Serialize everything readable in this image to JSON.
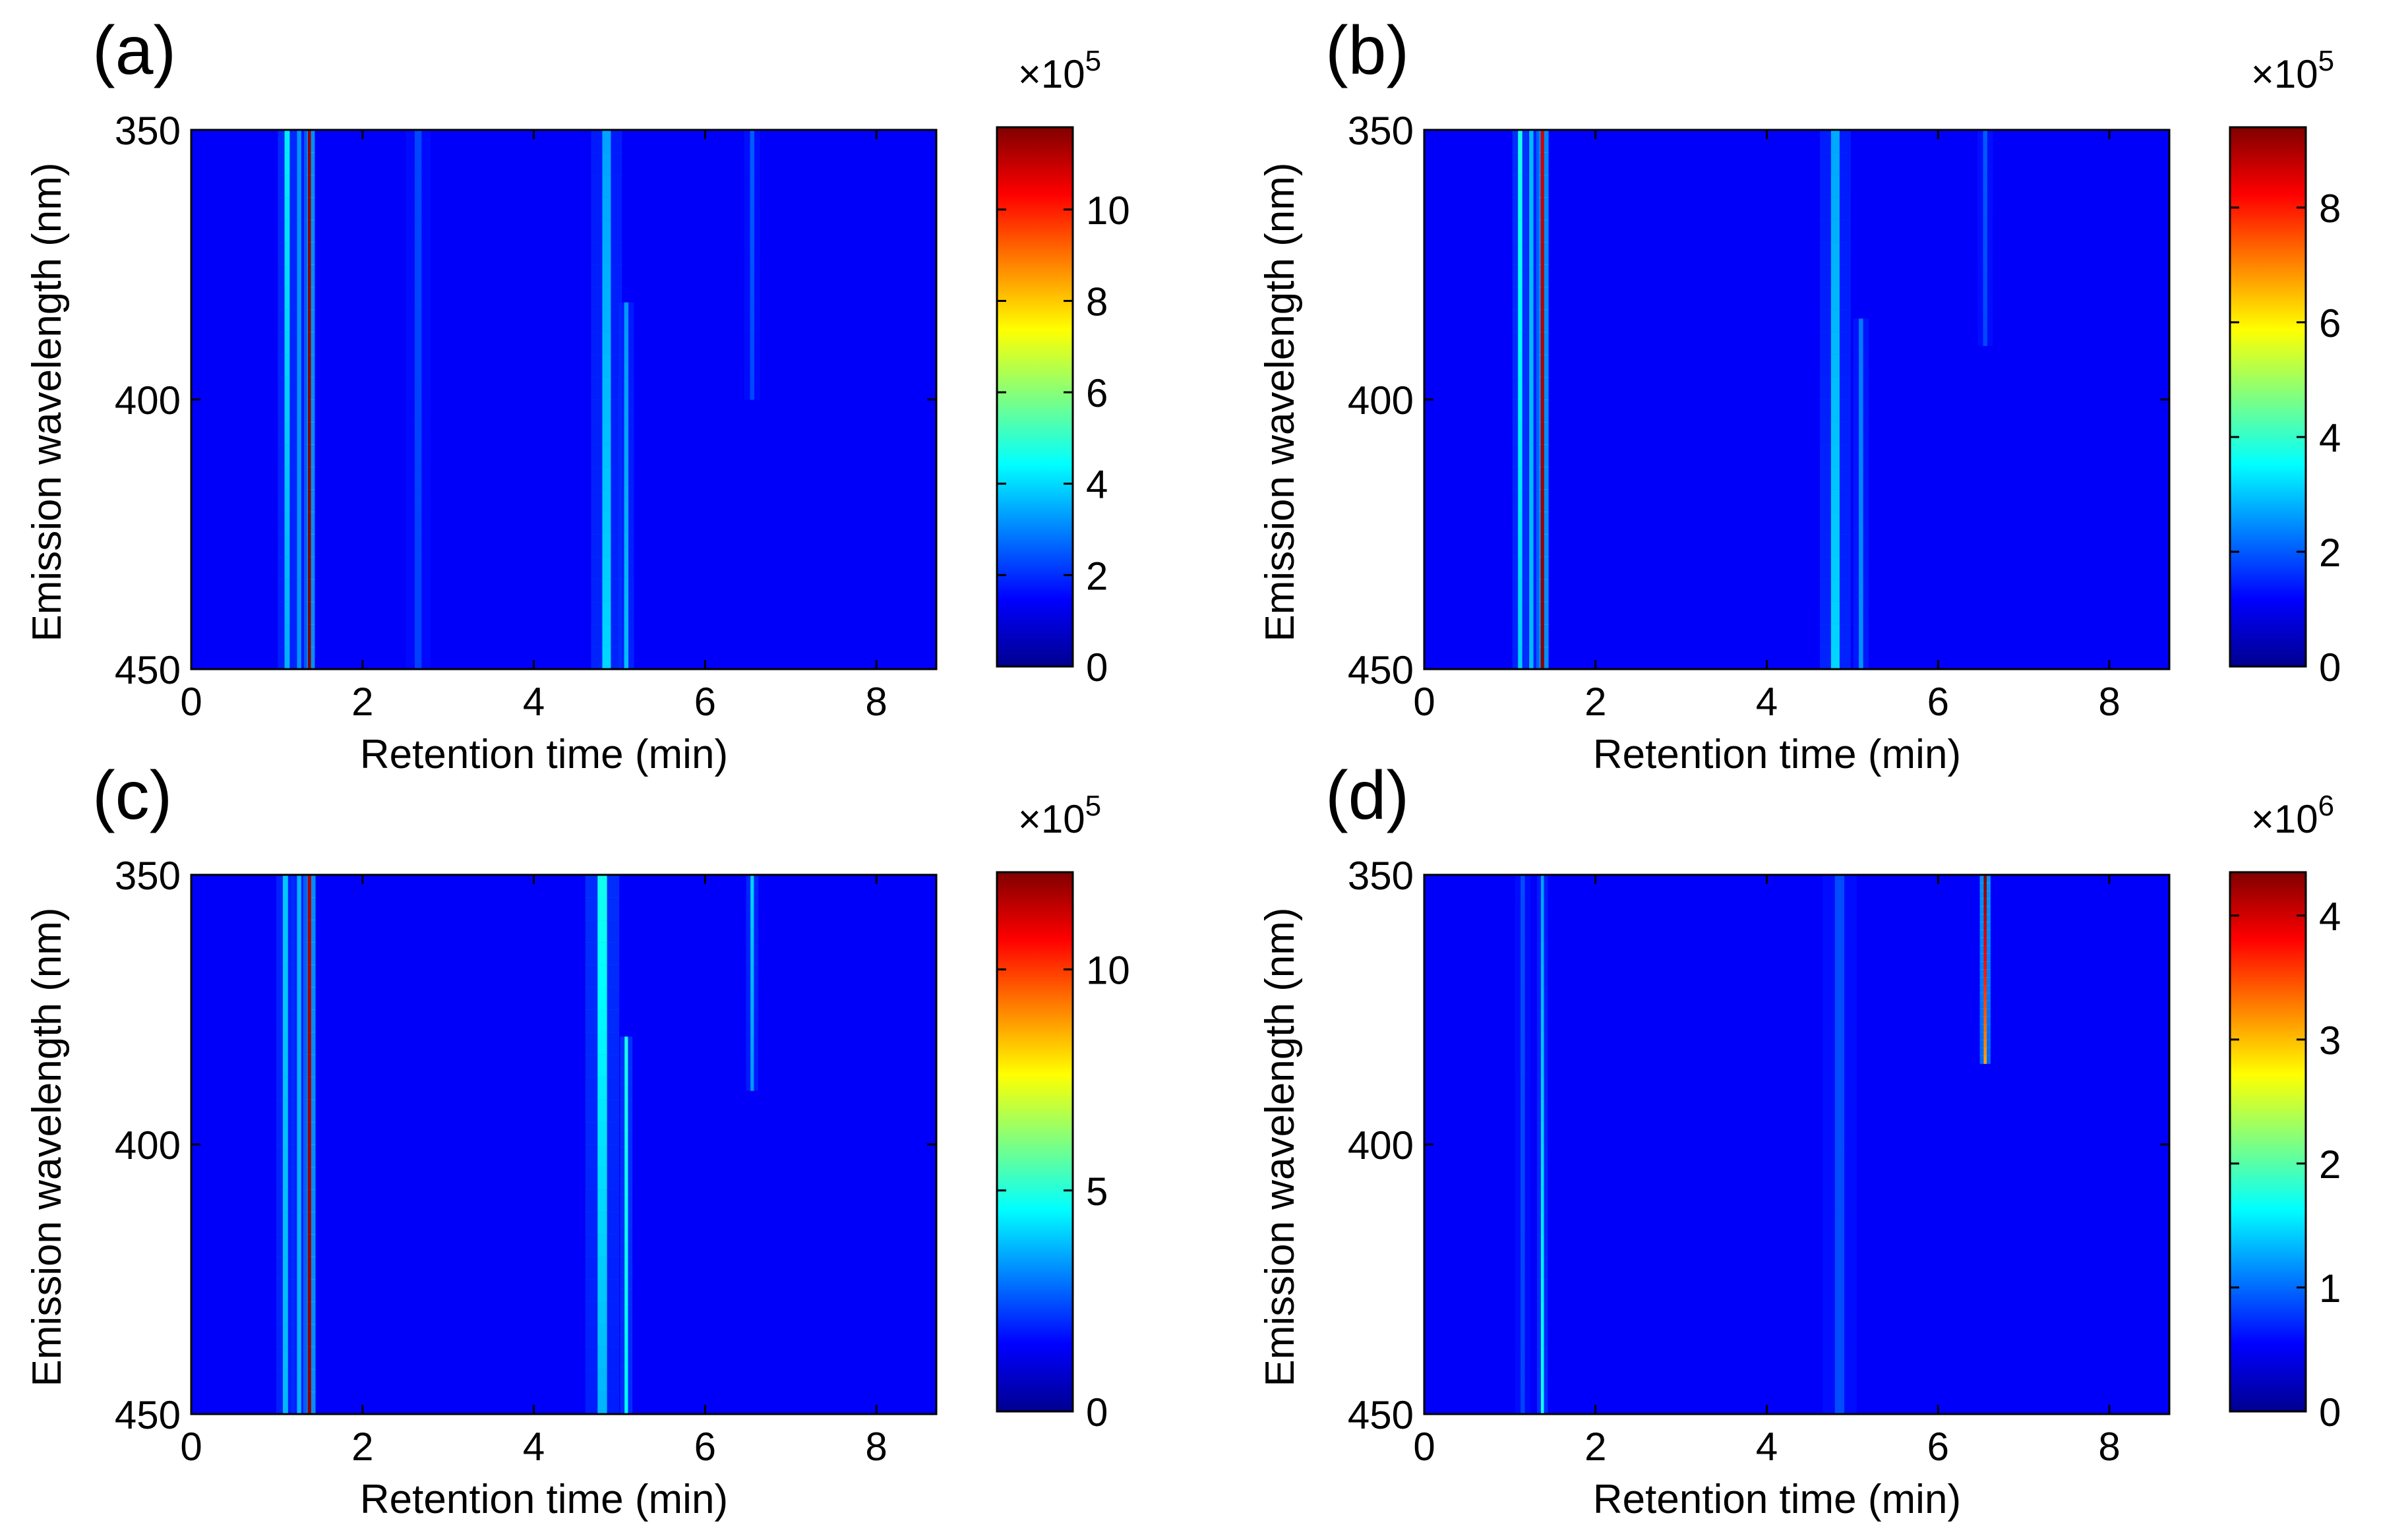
{
  "chart_data": [
    {
      "panel": "(a)",
      "type": "heatmap",
      "xlabel": "Retention time (min)",
      "ylabel": "Emission wavelength (nm)",
      "xlim": [
        0,
        8.7
      ],
      "ylim": [
        350,
        450
      ],
      "xticks": [
        0,
        2,
        4,
        6,
        8
      ],
      "yticks": [
        350,
        400,
        450
      ],
      "colorbar": {
        "exponent_label": "×10",
        "exponent": "5",
        "range": [
          0,
          11.8
        ],
        "ticks": [
          0,
          2,
          4,
          6,
          8,
          10
        ]
      },
      "peaks": [
        {
          "t": 1.12,
          "width": 0.06,
          "wl_from": 350,
          "wl_to": 450,
          "amp_top": 3.2,
          "amp_bottom": 2.4
        },
        {
          "t": 1.38,
          "width": 0.035,
          "wl_from": 350,
          "wl_to": 450,
          "amp_top": 11.5,
          "amp_bottom": 11.8
        },
        {
          "t": 1.26,
          "width": 0.05,
          "wl_from": 350,
          "wl_to": 450,
          "amp_top": 2.0,
          "amp_bottom": 2.0
        },
        {
          "t": 2.65,
          "width": 0.08,
          "wl_from": 350,
          "wl_to": 450,
          "amp_top": 1.0,
          "amp_bottom": 0.9
        },
        {
          "t": 4.85,
          "width": 0.1,
          "wl_from": 350,
          "wl_to": 450,
          "amp_top": 2.2,
          "amp_bottom": 2.9
        },
        {
          "t": 5.08,
          "width": 0.05,
          "wl_from": 382,
          "wl_to": 450,
          "amp_top": 1.8,
          "amp_bottom": 2.6
        },
        {
          "t": 6.55,
          "width": 0.05,
          "wl_from": 350,
          "wl_to": 400,
          "amp_top": 1.3,
          "amp_bottom": 0.7
        }
      ]
    },
    {
      "panel": "(b)",
      "type": "heatmap",
      "xlabel": "Retention time (min)",
      "ylabel": "Emission wavelength (nm)",
      "xlim": [
        0,
        8.7
      ],
      "ylim": [
        350,
        450
      ],
      "xticks": [
        0,
        2,
        4,
        6,
        8
      ],
      "yticks": [
        350,
        400,
        450
      ],
      "colorbar": {
        "exponent_label": "×10",
        "exponent": "5",
        "range": [
          0,
          9.4
        ],
        "ticks": [
          0,
          2,
          4,
          6,
          8
        ]
      },
      "peaks": [
        {
          "t": 1.12,
          "width": 0.05,
          "wl_from": 350,
          "wl_to": 450,
          "amp_top": 3.0,
          "amp_bottom": 2.2
        },
        {
          "t": 1.38,
          "width": 0.04,
          "wl_from": 350,
          "wl_to": 450,
          "amp_top": 8.5,
          "amp_bottom": 9.3
        },
        {
          "t": 1.25,
          "width": 0.05,
          "wl_from": 350,
          "wl_to": 450,
          "amp_top": 2.0,
          "amp_bottom": 2.0
        },
        {
          "t": 4.8,
          "width": 0.1,
          "wl_from": 350,
          "wl_to": 450,
          "amp_top": 1.8,
          "amp_bottom": 2.3
        },
        {
          "t": 5.1,
          "width": 0.05,
          "wl_from": 385,
          "wl_to": 450,
          "amp_top": 1.2,
          "amp_bottom": 1.6
        },
        {
          "t": 6.55,
          "width": 0.05,
          "wl_from": 350,
          "wl_to": 390,
          "amp_top": 1.0,
          "amp_bottom": 0.5
        }
      ]
    },
    {
      "panel": "(c)",
      "type": "heatmap",
      "xlabel": "Retention time (min)",
      "ylabel": "Emission wavelength (nm)",
      "xlim": [
        0,
        8.7
      ],
      "ylim": [
        350,
        450
      ],
      "xticks": [
        0,
        2,
        4,
        6,
        8
      ],
      "yticks": [
        350,
        400,
        450
      ],
      "colorbar": {
        "exponent_label": "×10",
        "exponent": "5",
        "range": [
          0,
          12.2
        ],
        "ticks": [
          0,
          5,
          10
        ]
      },
      "peaks": [
        {
          "t": 1.1,
          "width": 0.06,
          "wl_from": 350,
          "wl_to": 450,
          "amp_top": 2.8,
          "amp_bottom": 2.6
        },
        {
          "t": 1.38,
          "width": 0.04,
          "wl_from": 350,
          "wl_to": 450,
          "amp_top": 11.5,
          "amp_bottom": 12.0
        },
        {
          "t": 1.26,
          "width": 0.05,
          "wl_from": 350,
          "wl_to": 450,
          "amp_top": 2.5,
          "amp_bottom": 2.5
        },
        {
          "t": 4.8,
          "width": 0.11,
          "wl_from": 350,
          "wl_to": 450,
          "amp_top": 3.8,
          "amp_bottom": 2.5
        },
        {
          "t": 5.08,
          "width": 0.04,
          "wl_from": 380,
          "wl_to": 450,
          "amp_top": 4.0,
          "amp_bottom": 3.5
        },
        {
          "t": 6.55,
          "width": 0.04,
          "wl_from": 350,
          "wl_to": 390,
          "amp_top": 3.0,
          "amp_bottom": 0.8
        }
      ]
    },
    {
      "panel": "(d)",
      "type": "heatmap",
      "xlabel": "Retention time (min)",
      "ylabel": "Emission wavelength (nm)",
      "xlim": [
        0,
        8.7
      ],
      "ylim": [
        350,
        450
      ],
      "xticks": [
        0,
        2,
        4,
        6,
        8
      ],
      "yticks": [
        350,
        400,
        450
      ],
      "colorbar": {
        "exponent_label": "×10",
        "exponent": "6",
        "range": [
          0,
          4.35
        ],
        "ticks": [
          0,
          1,
          2,
          3,
          4
        ]
      },
      "peaks": [
        {
          "t": 1.38,
          "width": 0.035,
          "wl_from": 350,
          "wl_to": 450,
          "amp_top": 0.8,
          "amp_bottom": 1.35
        },
        {
          "t": 1.15,
          "width": 0.05,
          "wl_from": 350,
          "wl_to": 450,
          "amp_top": 0.4,
          "amp_bottom": 0.35
        },
        {
          "t": 4.85,
          "width": 0.11,
          "wl_from": 350,
          "wl_to": 450,
          "amp_top": 0.4,
          "amp_bottom": 0.4
        },
        {
          "t": 6.55,
          "width": 0.035,
          "wl_from": 350,
          "wl_to": 385,
          "amp_top": 4.35,
          "amp_bottom": 0.3
        }
      ]
    }
  ]
}
